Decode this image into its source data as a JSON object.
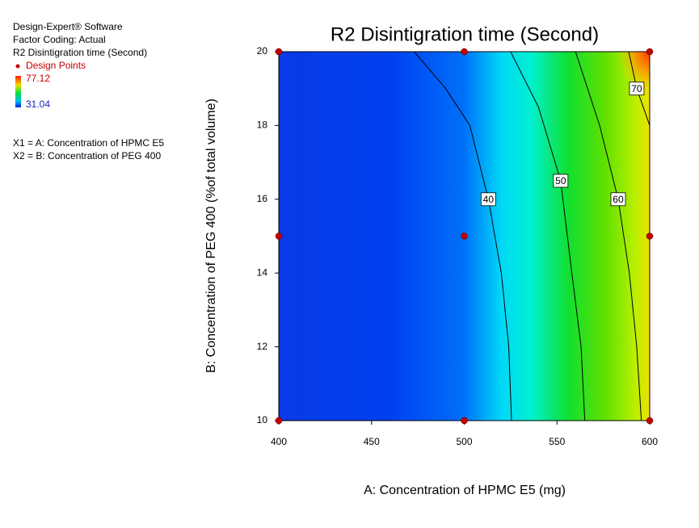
{
  "chart_data": {
    "type": "contour",
    "title": "R2 Disintigration time (Second)",
    "info": [
      "Design-Expert® Software",
      "Factor Coding: Actual",
      "R2 Disintigration time (Second)"
    ],
    "legend_label": "Design Points",
    "colorbar": {
      "max": 77.12,
      "min": 31.04
    },
    "factors": [
      "X1 = A: Concentration of HPMC E5",
      "X2 = B: Concentration of PEG 400"
    ],
    "x_label": "A: Concentration of HPMC E5 (mg)",
    "y_label": "B: Concentration of PEG 400 (%of total volume)",
    "xlim": [
      400,
      600
    ],
    "xticks": [
      400,
      450,
      500,
      550,
      600
    ],
    "ylim": [
      10,
      20
    ],
    "yticks": [
      10,
      12,
      14,
      16,
      18,
      20
    ],
    "points": {
      "color": "#c00000",
      "x": [
        400,
        400,
        400,
        500,
        500,
        500,
        600,
        600,
        600
      ],
      "y": [
        10,
        15,
        20,
        10,
        15,
        20,
        10,
        15,
        20
      ]
    },
    "contours": [
      {
        "level": 40,
        "x": [
          473,
          490,
          503,
          513,
          520,
          524,
          525.5
        ],
        "y": [
          20,
          19,
          18,
          16,
          14,
          12,
          10
        ]
      },
      {
        "level": 50,
        "x": [
          525,
          540,
          552,
          558,
          563,
          565
        ],
        "y": [
          20,
          18.5,
          16.5,
          14,
          12,
          10
        ]
      },
      {
        "level": 60,
        "x": [
          560,
          573,
          583,
          589,
          593,
          595.5
        ],
        "y": [
          20,
          18,
          16,
          14,
          12,
          10
        ]
      },
      {
        "level": 70,
        "x": [
          588.7,
          593,
          600
        ],
        "y": [
          20,
          19,
          18
        ]
      }
    ]
  }
}
